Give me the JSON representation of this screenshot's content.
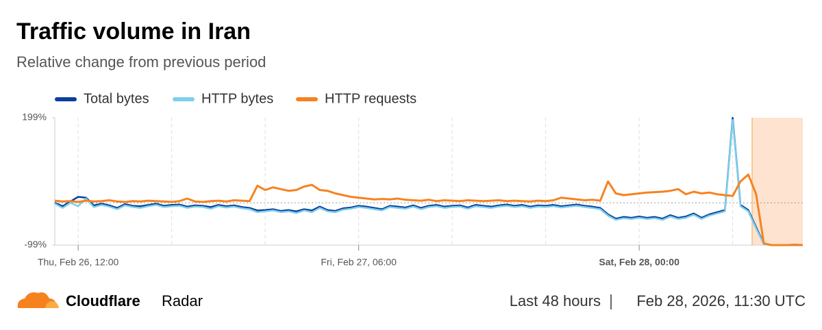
{
  "chart_data": {
    "type": "line",
    "title": "Traffic volume in Iran",
    "subtitle": "Relative change from previous period",
    "categories": [
      null,
      null,
      null,
      "Thu, Feb 26, 12:00",
      null,
      null,
      null,
      null,
      null,
      null,
      null,
      null,
      null,
      null,
      null,
      null,
      null,
      null,
      null,
      null,
      null,
      null,
      null,
      null,
      null,
      null,
      null,
      null,
      null,
      null,
      null,
      null,
      null,
      null,
      null,
      null,
      null,
      null,
      null,
      "Fri, Feb 27, 06:00",
      null,
      null,
      null,
      null,
      null,
      null,
      null,
      null,
      null,
      null,
      null,
      null,
      null,
      null,
      null,
      null,
      null,
      null,
      null,
      null,
      null,
      null,
      null,
      null,
      null,
      null,
      null,
      null,
      null,
      null,
      null,
      null,
      null,
      null,
      null,
      "Sat, Feb 28, 00:00",
      null,
      null,
      null,
      null,
      null,
      null,
      null,
      null,
      null,
      null,
      null,
      null,
      null,
      null,
      null,
      null,
      null,
      null,
      null,
      null,
      null
    ],
    "series": [
      {
        "name": "Total bytes",
        "color": "#0a3f9e",
        "values": [
          0,
          -8,
          3,
          14,
          12,
          -6,
          -2,
          -6,
          -12,
          -3,
          -7,
          -8,
          -5,
          -2,
          -7,
          -5,
          -4,
          -9,
          -6,
          -7,
          -10,
          -5,
          -8,
          -6,
          -10,
          -12,
          -18,
          -17,
          -15,
          -19,
          -17,
          -20,
          -15,
          -18,
          -9,
          -17,
          -19,
          -13,
          -11,
          -7,
          -9,
          -12,
          -15,
          -7,
          -9,
          -11,
          -6,
          -12,
          -7,
          -5,
          -9,
          -7,
          -6,
          -11,
          -5,
          -7,
          -9,
          -6,
          -4,
          -7,
          -5,
          -9,
          -6,
          -7,
          -5,
          -8,
          -6,
          -4,
          -7,
          -9,
          -12,
          -27,
          -37,
          -33,
          -35,
          -32,
          -35,
          -33,
          -37,
          -29,
          -35,
          -32,
          -25,
          -35,
          -27,
          -22,
          -17,
          199,
          -5,
          -17,
          -57,
          -96,
          -99,
          -99,
          -99,
          -99,
          -99
        ]
      },
      {
        "name": "HTTP bytes",
        "color": "#7ecfea",
        "values": [
          -2,
          -12,
          0,
          -8,
          10,
          -10,
          -5,
          -9,
          -15,
          -6,
          -10,
          -12,
          -8,
          -5,
          -10,
          -8,
          -7,
          -12,
          -9,
          -10,
          -14,
          -8,
          -11,
          -9,
          -13,
          -15,
          -22,
          -20,
          -18,
          -22,
          -20,
          -24,
          -18,
          -22,
          -12,
          -20,
          -22,
          -16,
          -14,
          -10,
          -12,
          -15,
          -18,
          -10,
          -12,
          -14,
          -9,
          -15,
          -10,
          -8,
          -12,
          -10,
          -9,
          -14,
          -8,
          -10,
          -12,
          -9,
          -7,
          -10,
          -8,
          -12,
          -9,
          -10,
          -8,
          -11,
          -9,
          -7,
          -10,
          -12,
          -15,
          -30,
          -40,
          -36,
          -38,
          -35,
          -38,
          -36,
          -40,
          -32,
          -38,
          -35,
          -28,
          -38,
          -30,
          -25,
          -20,
          194,
          -8,
          -20,
          -60,
          -97,
          -99,
          -99,
          -99,
          -99,
          -99
        ]
      },
      {
        "name": "HTTP requests",
        "color": "#f6821f",
        "values": [
          5,
          3,
          4,
          2,
          5,
          3,
          4,
          6,
          3,
          2,
          4,
          3,
          5,
          4,
          3,
          2,
          4,
          10,
          3,
          2,
          4,
          5,
          3,
          6,
          5,
          4,
          40,
          30,
          36,
          32,
          28,
          30,
          38,
          42,
          30,
          28,
          22,
          18,
          14,
          12,
          10,
          8,
          9,
          8,
          10,
          7,
          6,
          5,
          7,
          4,
          6,
          5,
          4,
          6,
          5,
          4,
          5,
          6,
          4,
          5,
          4,
          3,
          5,
          4,
          6,
          12,
          10,
          8,
          6,
          7,
          5,
          50,
          22,
          18,
          20,
          22,
          24,
          25,
          26,
          28,
          32,
          20,
          26,
          22,
          24,
          20,
          18,
          16,
          50,
          66,
          20,
          -95,
          -99,
          -99,
          -99,
          -98,
          -99
        ]
      }
    ],
    "ylim": [
      -99,
      199
    ],
    "yticks": [
      {
        "value": -99,
        "label": "-99%"
      },
      {
        "value": 199,
        "label": "199%"
      }
    ]
  },
  "footer": {
    "brand": "Cloudflare",
    "product": "Radar",
    "period": "Last 48 hours",
    "timestamp": "Feb 28, 2026, 11:30 UTC"
  }
}
